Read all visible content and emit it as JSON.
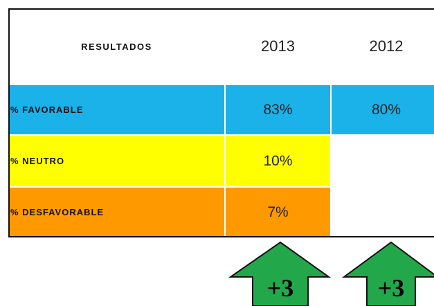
{
  "table": {
    "header": [
      "RESULTADOS",
      "2013",
      "2012"
    ],
    "rows": [
      {
        "label": "% FAVORABLE",
        "values": [
          "83%",
          "80%"
        ]
      },
      {
        "label": "% NEUTRO",
        "values": [
          "10%"
        ]
      },
      {
        "label": "% DESFAVORABLE",
        "values": [
          "7%"
        ]
      }
    ]
  },
  "arrows": [
    "+3",
    "+3"
  ]
}
